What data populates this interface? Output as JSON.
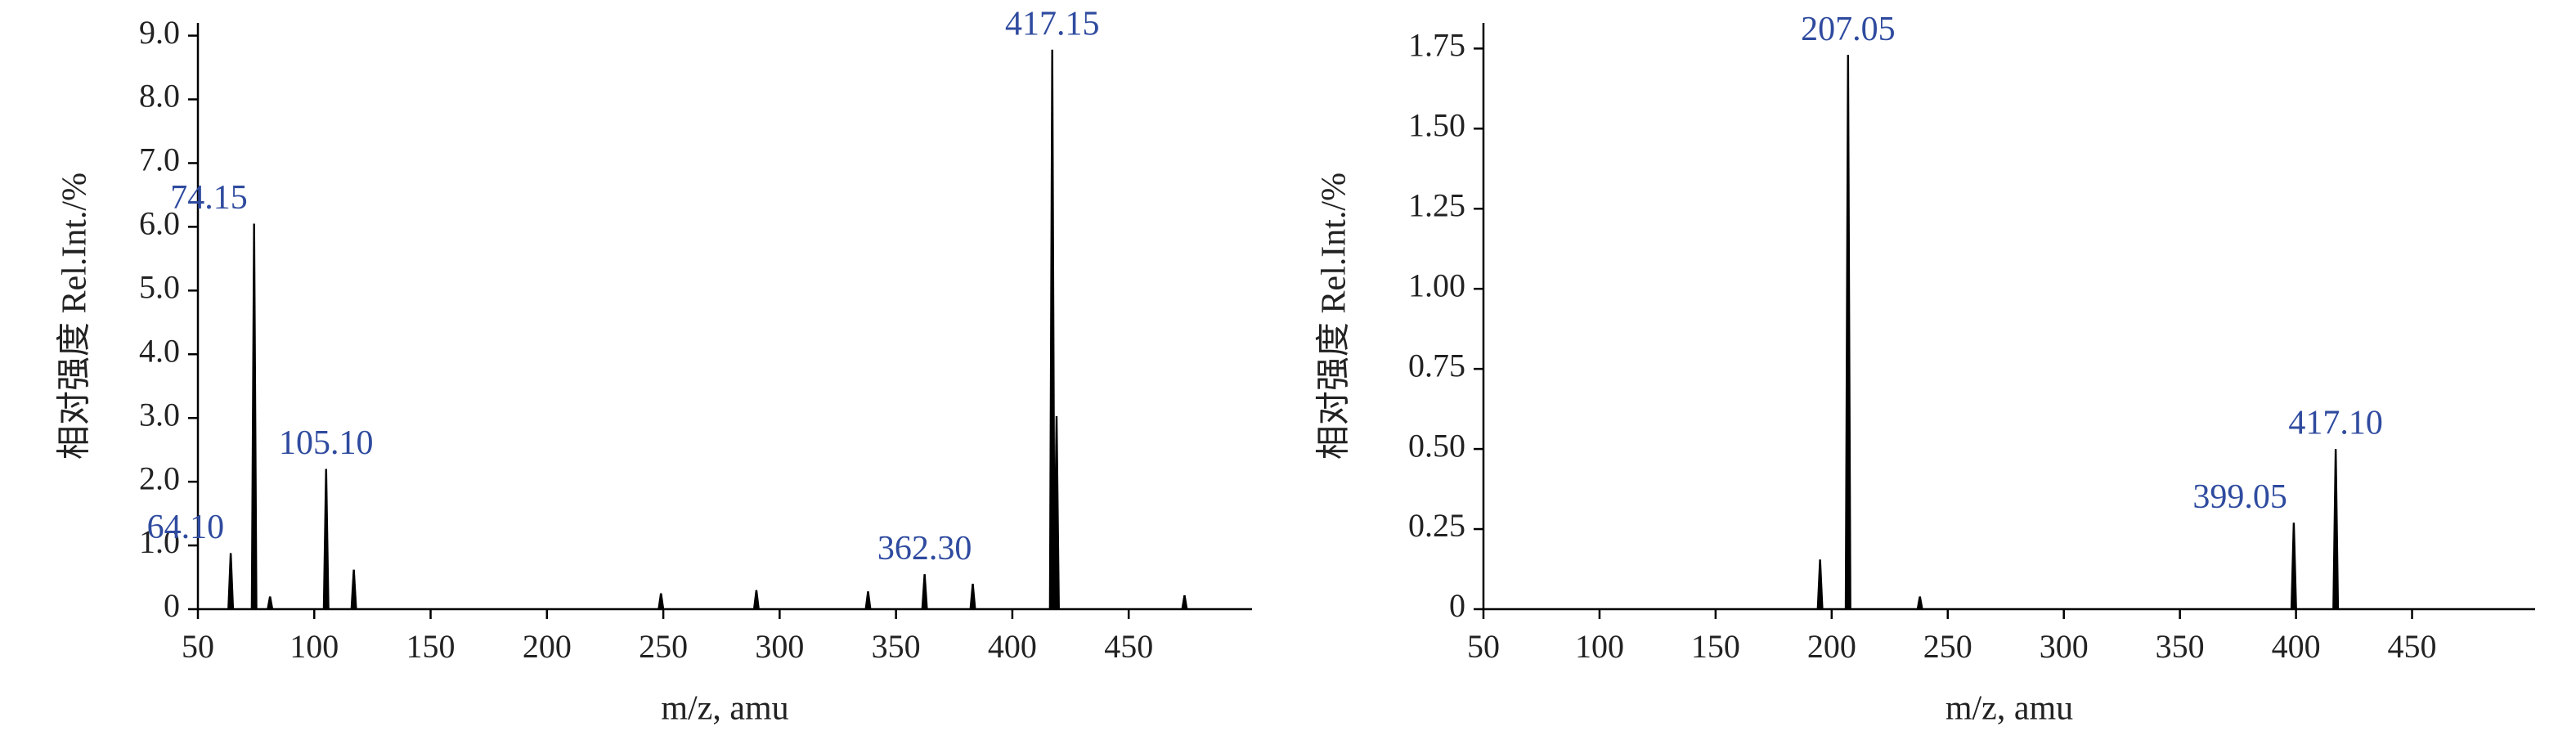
{
  "chart_data": [
    {
      "type": "spectrum",
      "y_label": "相对强度 Rel.Int./%",
      "x_label": "m/z, amu",
      "color": "#000000",
      "label_color": "#2f4b9f",
      "x": [
        64.1,
        74.15,
        81,
        105.1,
        117,
        249,
        290,
        338,
        362.3,
        383,
        417.15,
        419,
        474
      ],
      "values": [
        0.88,
        6.05,
        0.2,
        2.2,
        0.62,
        0.25,
        0.3,
        0.28,
        0.55,
        0.4,
        8.78,
        3.03,
        0.22
      ],
      "x_labels": [
        "64.10",
        "74.15",
        null,
        "105.10",
        null,
        null,
        null,
        null,
        "362.30",
        null,
        "417.15",
        null,
        null
      ],
      "xlim": [
        50,
        503
      ],
      "xticks": [
        50,
        100,
        150,
        200,
        250,
        300,
        350,
        400,
        450
      ],
      "ylim": [
        0,
        9.2
      ],
      "yticks": [
        0,
        {
          "value": 1,
          "label": "1.0"
        },
        {
          "value": 2,
          "label": "2.0"
        },
        {
          "value": 3,
          "label": "3.0"
        },
        {
          "value": 4,
          "label": "4.0"
        },
        {
          "value": 5,
          "label": "5.0"
        },
        {
          "value": 6,
          "label": "6.0"
        },
        {
          "value": 7,
          "label": "7.0"
        },
        {
          "value": 8,
          "label": "8.0"
        },
        {
          "value": 9,
          "label": "9.0"
        }
      ]
    },
    {
      "type": "spectrum",
      "y_label": "相对强度 Rel.Int./%",
      "x_label": "m/z, amu",
      "color": "#000000",
      "label_color": "#2f4b9f",
      "x": [
        195,
        207.05,
        238,
        399.05,
        417.1
      ],
      "values": [
        0.155,
        1.73,
        0.04,
        0.27,
        0.5
      ],
      "x_labels": [
        null,
        "207.05",
        null,
        "399.05",
        "417.10"
      ],
      "xlim": [
        50,
        503
      ],
      "xticks": [
        50,
        100,
        150,
        200,
        250,
        300,
        350,
        400,
        450
      ],
      "ylim": [
        0,
        1.83
      ],
      "yticks": [
        0,
        0.25,
        {
          "value": 0.5,
          "label": "0.50"
        },
        0.75,
        {
          "value": 1,
          "label": "1.00"
        },
        1.25,
        {
          "value": 1.5,
          "label": "1.50"
        },
        1.75
      ]
    }
  ]
}
